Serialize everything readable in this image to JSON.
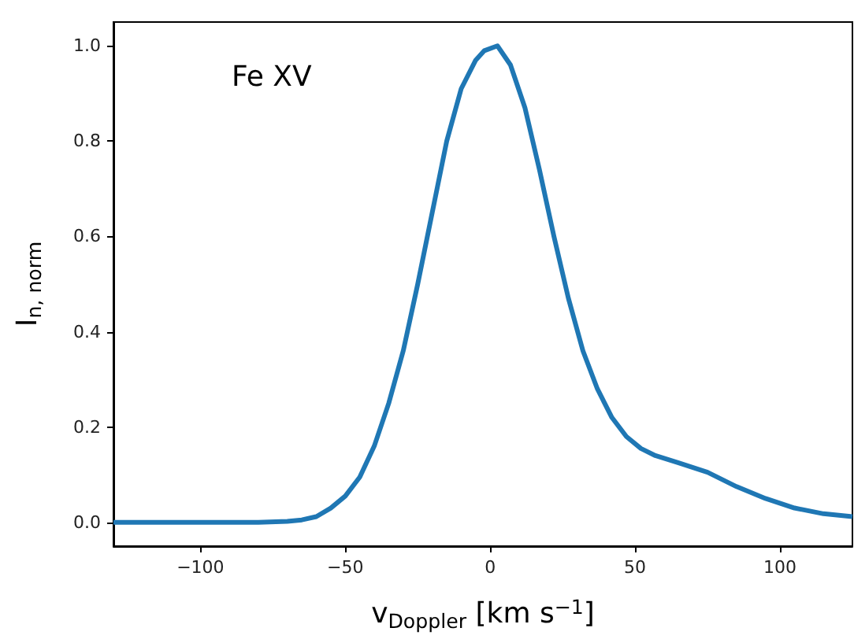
{
  "chart_data": {
    "type": "line",
    "xlabel": "v$_{Doppler}$ [km s$^{−1}$]",
    "ylabel": "I$_{n, norm}$",
    "annotations": [
      "Fe XV"
    ],
    "xlim": [
      -130,
      125
    ],
    "xticks": [
      {
        "value": -100,
        "label": "−100"
      },
      {
        "value": -50,
        "label": "−50"
      },
      0,
      50,
      100
    ],
    "ylim": [
      -0.05,
      1.05
    ],
    "yticks": [
      {
        "value": 0,
        "label": "0.0"
      },
      0.2,
      0.4,
      0.6,
      0.8,
      {
        "value": 1,
        "label": "1.0"
      }
    ],
    "grid": false,
    "marker": "none",
    "line_style": "solid",
    "series": [
      {
        "color": "#1f77b4",
        "x": [
          -130,
          -120,
          -110,
          -100,
          -90,
          -80,
          -70,
          -65,
          -60,
          -55,
          -50,
          -45,
          -40,
          -35,
          -30,
          -25,
          -20,
          -15,
          -10,
          -5,
          -2,
          2.5,
          7,
          12,
          17,
          22,
          27,
          32,
          37,
          42,
          47,
          52,
          57,
          65,
          75,
          85,
          95,
          105,
          115,
          125
        ],
        "values": [
          0,
          0,
          0,
          0,
          0,
          0,
          0.002,
          0.005,
          0.012,
          0.03,
          0.055,
          0.095,
          0.16,
          0.25,
          0.36,
          0.5,
          0.65,
          0.8,
          0.91,
          0.97,
          0.99,
          1.0,
          0.96,
          0.87,
          0.74,
          0.6,
          0.47,
          0.36,
          0.28,
          0.22,
          0.18,
          0.155,
          0.14,
          0.125,
          0.105,
          0.075,
          0.05,
          0.03,
          0.018,
          0.012
        ]
      }
    ]
  }
}
